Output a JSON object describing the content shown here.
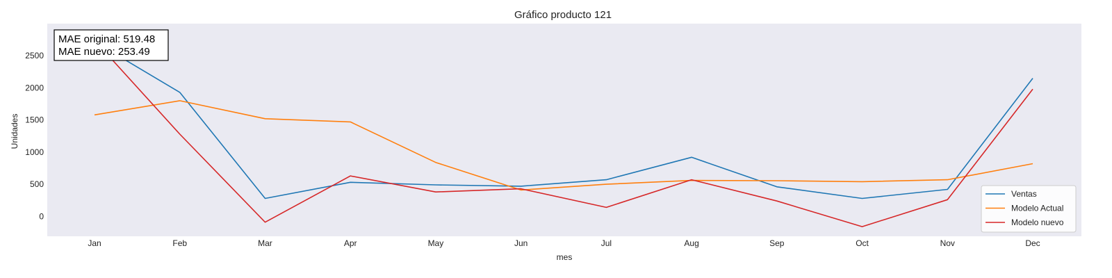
{
  "chart_data": {
    "type": "line",
    "title": "Gráfico producto 121",
    "xlabel": "mes",
    "ylabel": "Unidades",
    "categories": [
      "Jan",
      "Feb",
      "Mar",
      "Apr",
      "May",
      "Jun",
      "Jul",
      "Aug",
      "Sep",
      "Oct",
      "Nov",
      "Dec"
    ],
    "yticks": [
      0,
      500,
      1000,
      1500,
      2000,
      2500
    ],
    "ylim": [
      -310,
      3000
    ],
    "grid": false,
    "legend_position": "bottom-right",
    "series": [
      {
        "name": "Ventas",
        "color": "#1f77b4",
        "values": [
          2720,
          1930,
          280,
          530,
          490,
          470,
          570,
          920,
          460,
          280,
          420,
          2150
        ]
      },
      {
        "name": "Modelo Actual",
        "color": "#ff7f0e",
        "values": [
          1580,
          1800,
          1520,
          1470,
          840,
          410,
          500,
          560,
          555,
          540,
          570,
          820
        ]
      },
      {
        "name": "Modelo nuevo",
        "color": "#d62728",
        "values": [
          2740,
          1280,
          -90,
          630,
          380,
          430,
          140,
          570,
          240,
          -160,
          260,
          1980
        ]
      }
    ],
    "annotation": [
      "MAE original: 519.48",
      "MAE nuevo: 253.49"
    ],
    "plot_background": "#eaeaf2"
  }
}
